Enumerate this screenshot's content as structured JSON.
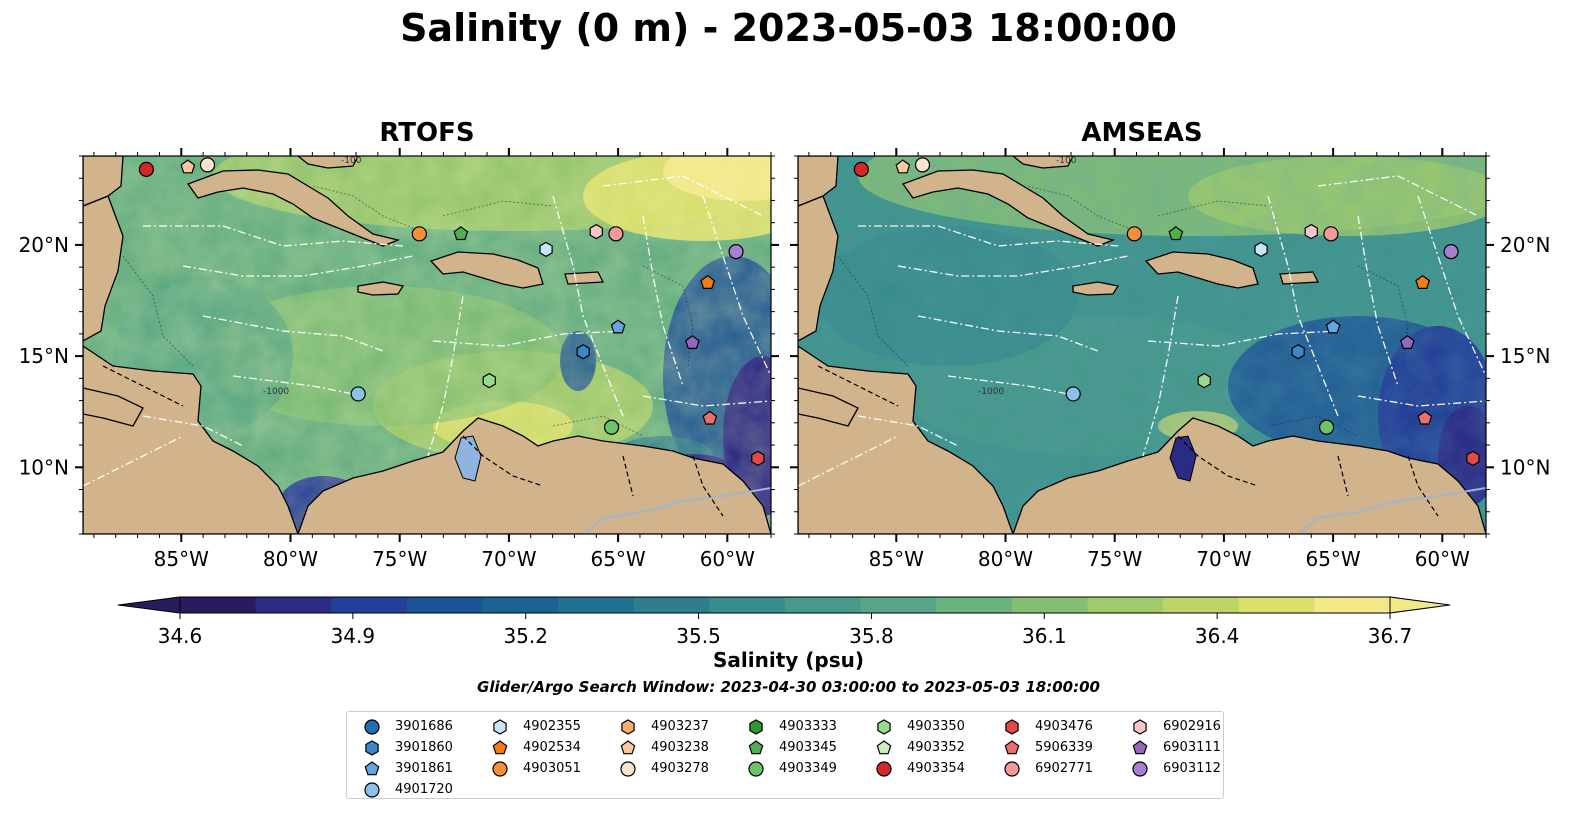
{
  "title": "Salinity (0 m) - 2023-05-03 18:00:00",
  "panels": [
    {
      "title": "RTOFS"
    },
    {
      "title": "AMSEAS"
    }
  ],
  "axes": {
    "lon_ticks": [
      "85°W",
      "80°W",
      "75°W",
      "70°W",
      "65°W",
      "60°W"
    ],
    "lat_ticks": [
      "20°N",
      "15°N",
      "10°N"
    ],
    "contour_labels": [
      "-100",
      "-1000"
    ]
  },
  "colorbar": {
    "colormap": "haline",
    "vmin": 34.6,
    "vmax": 36.7,
    "extend": "both",
    "ticks": [
      "34.6",
      "34.9",
      "35.2",
      "35.5",
      "35.8",
      "36.1",
      "36.4",
      "36.7"
    ],
    "label": "Salinity (psu)",
    "colors": [
      "#2a1a5e",
      "#2b2a85",
      "#243f97",
      "#1c5296",
      "#1a6393",
      "#237190",
      "#2e7e8e",
      "#398c8c",
      "#47998a",
      "#57a685",
      "#6ab37f",
      "#84bf74",
      "#a1ca6a",
      "#bdd566",
      "#dbe06b",
      "#f2e88a"
    ]
  },
  "search_window": "Glider/Argo Search Window: 2023-04-30 03:00:00 to 2023-05-03 18:00:00",
  "legend": [
    {
      "id": "3901686",
      "marker": "circle",
      "color": "#1f6fb4"
    },
    {
      "id": "3901860",
      "marker": "hexagon",
      "color": "#3f86c8"
    },
    {
      "id": "3901861",
      "marker": "pentagon",
      "color": "#63a6dd"
    },
    {
      "id": "4901720",
      "marker": "circle",
      "color": "#8cc0e8"
    },
    {
      "id": "4902355",
      "marker": "hexagon",
      "color": "#c9e3f7"
    },
    {
      "id": "4902534",
      "marker": "pentagon",
      "color": "#f47b12"
    },
    {
      "id": "4903051",
      "marker": "circle",
      "color": "#f58f3a"
    },
    {
      "id": "4903237",
      "marker": "hexagon",
      "color": "#f9ad6e"
    },
    {
      "id": "4903238",
      "marker": "pentagon",
      "color": "#fbc99c"
    },
    {
      "id": "4903278",
      "marker": "circle",
      "color": "#fde4cf"
    },
    {
      "id": "4903333",
      "marker": "hexagon",
      "color": "#2a9a2f"
    },
    {
      "id": "4903345",
      "marker": "pentagon",
      "color": "#4db04a"
    },
    {
      "id": "4903349",
      "marker": "circle",
      "color": "#6cc469"
    },
    {
      "id": "4903350",
      "marker": "hexagon",
      "color": "#98d98e"
    },
    {
      "id": "4903352",
      "marker": "pentagon",
      "color": "#c7edc0"
    },
    {
      "id": "4903354",
      "marker": "circle",
      "color": "#d62728"
    },
    {
      "id": "4903476",
      "marker": "hexagon",
      "color": "#e04a4a"
    },
    {
      "id": "5906339",
      "marker": "pentagon",
      "color": "#e86f6f"
    },
    {
      "id": "6902771",
      "marker": "circle",
      "color": "#f09a9a"
    },
    {
      "id": "6902916",
      "marker": "hexagon",
      "color": "#f8c6c6"
    },
    {
      "id": "6903111",
      "marker": "pentagon",
      "color": "#9467bd"
    },
    {
      "id": "6903112",
      "marker": "circle",
      "color": "#a97fd3"
    }
  ],
  "legend_columns": [
    [
      0,
      1,
      2,
      3
    ],
    [
      4,
      5,
      6
    ],
    [
      7,
      8,
      9
    ],
    [
      10,
      11,
      12
    ],
    [
      13,
      14,
      15
    ],
    [
      16,
      17,
      18
    ],
    [
      19,
      20,
      21
    ]
  ],
  "floats_on_map": [
    {
      "id": "4903354",
      "lon": -86.6,
      "lat": 23.4
    },
    {
      "id": "4903238",
      "lon": -84.7,
      "lat": 23.5
    },
    {
      "id": "4903278",
      "lon": -83.8,
      "lat": 23.6
    },
    {
      "id": "4903051",
      "lon": -74.1,
      "lat": 20.5
    },
    {
      "id": "4903345",
      "lon": -72.2,
      "lat": 20.5
    },
    {
      "id": "4902355",
      "lon": -68.3,
      "lat": 19.8
    },
    {
      "id": "6902916",
      "lon": -66.0,
      "lat": 20.6
    },
    {
      "id": "6902771",
      "lon": -65.1,
      "lat": 20.5
    },
    {
      "id": "6903112",
      "lon": -59.6,
      "lat": 19.7
    },
    {
      "id": "4902534",
      "lon": -60.9,
      "lat": 18.3
    },
    {
      "id": "3901861",
      "lon": -65.0,
      "lat": 16.3
    },
    {
      "id": "6903111",
      "lon": -61.6,
      "lat": 15.6
    },
    {
      "id": "3901860",
      "lon": -66.6,
      "lat": 15.2
    },
    {
      "id": "4903350",
      "lon": -70.9,
      "lat": 13.9
    },
    {
      "id": "4901720",
      "lon": -76.9,
      "lat": 13.3
    },
    {
      "id": "5906339",
      "lon": -60.8,
      "lat": 12.2
    },
    {
      "id": "4903349",
      "lon": -65.3,
      "lat": 11.8
    },
    {
      "id": "4903476",
      "lon": -58.6,
      "lat": 10.4
    }
  ]
}
